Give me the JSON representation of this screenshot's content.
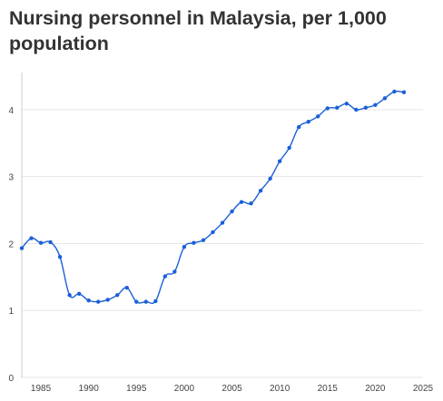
{
  "chart_data": {
    "type": "line",
    "title": "Nursing personnel in Malaysia, per 1,000 population",
    "xlabel": "",
    "ylabel": "",
    "xlim": [
      1983,
      2025
    ],
    "ylim": [
      0,
      4.5
    ],
    "x_ticks": [
      1985,
      1990,
      1995,
      2000,
      2005,
      2010,
      2015,
      2020,
      2025
    ],
    "y_ticks": [
      0,
      1,
      2,
      3,
      4
    ],
    "grid": true,
    "color": "#1a5fd8",
    "series": [
      {
        "x": [
          1983,
          1984,
          1985,
          1986,
          1987,
          1988,
          1989,
          1990,
          1991,
          1992,
          1993,
          1994,
          1995,
          1996,
          1997,
          1998,
          1999,
          2000,
          2001,
          2002,
          2003,
          2004,
          2005,
          2006,
          2007,
          2008,
          2009,
          2010,
          2011,
          2012,
          2013,
          2014,
          2015,
          2016,
          2017,
          2018,
          2019,
          2020,
          2021,
          2022,
          2023
        ],
        "values": [
          1.93,
          2.08,
          2.01,
          2.02,
          1.8,
          1.23,
          1.25,
          1.15,
          1.13,
          1.16,
          1.23,
          1.34,
          1.13,
          1.13,
          1.14,
          1.51,
          1.58,
          1.95,
          2.01,
          2.05,
          2.17,
          2.31,
          2.48,
          2.62,
          2.6,
          2.79,
          2.97,
          3.23,
          3.43,
          3.74,
          3.82,
          3.9,
          4.02,
          4.03,
          4.09,
          4.0,
          4.03,
          4.07,
          4.17,
          4.27,
          4.26
        ]
      }
    ]
  }
}
